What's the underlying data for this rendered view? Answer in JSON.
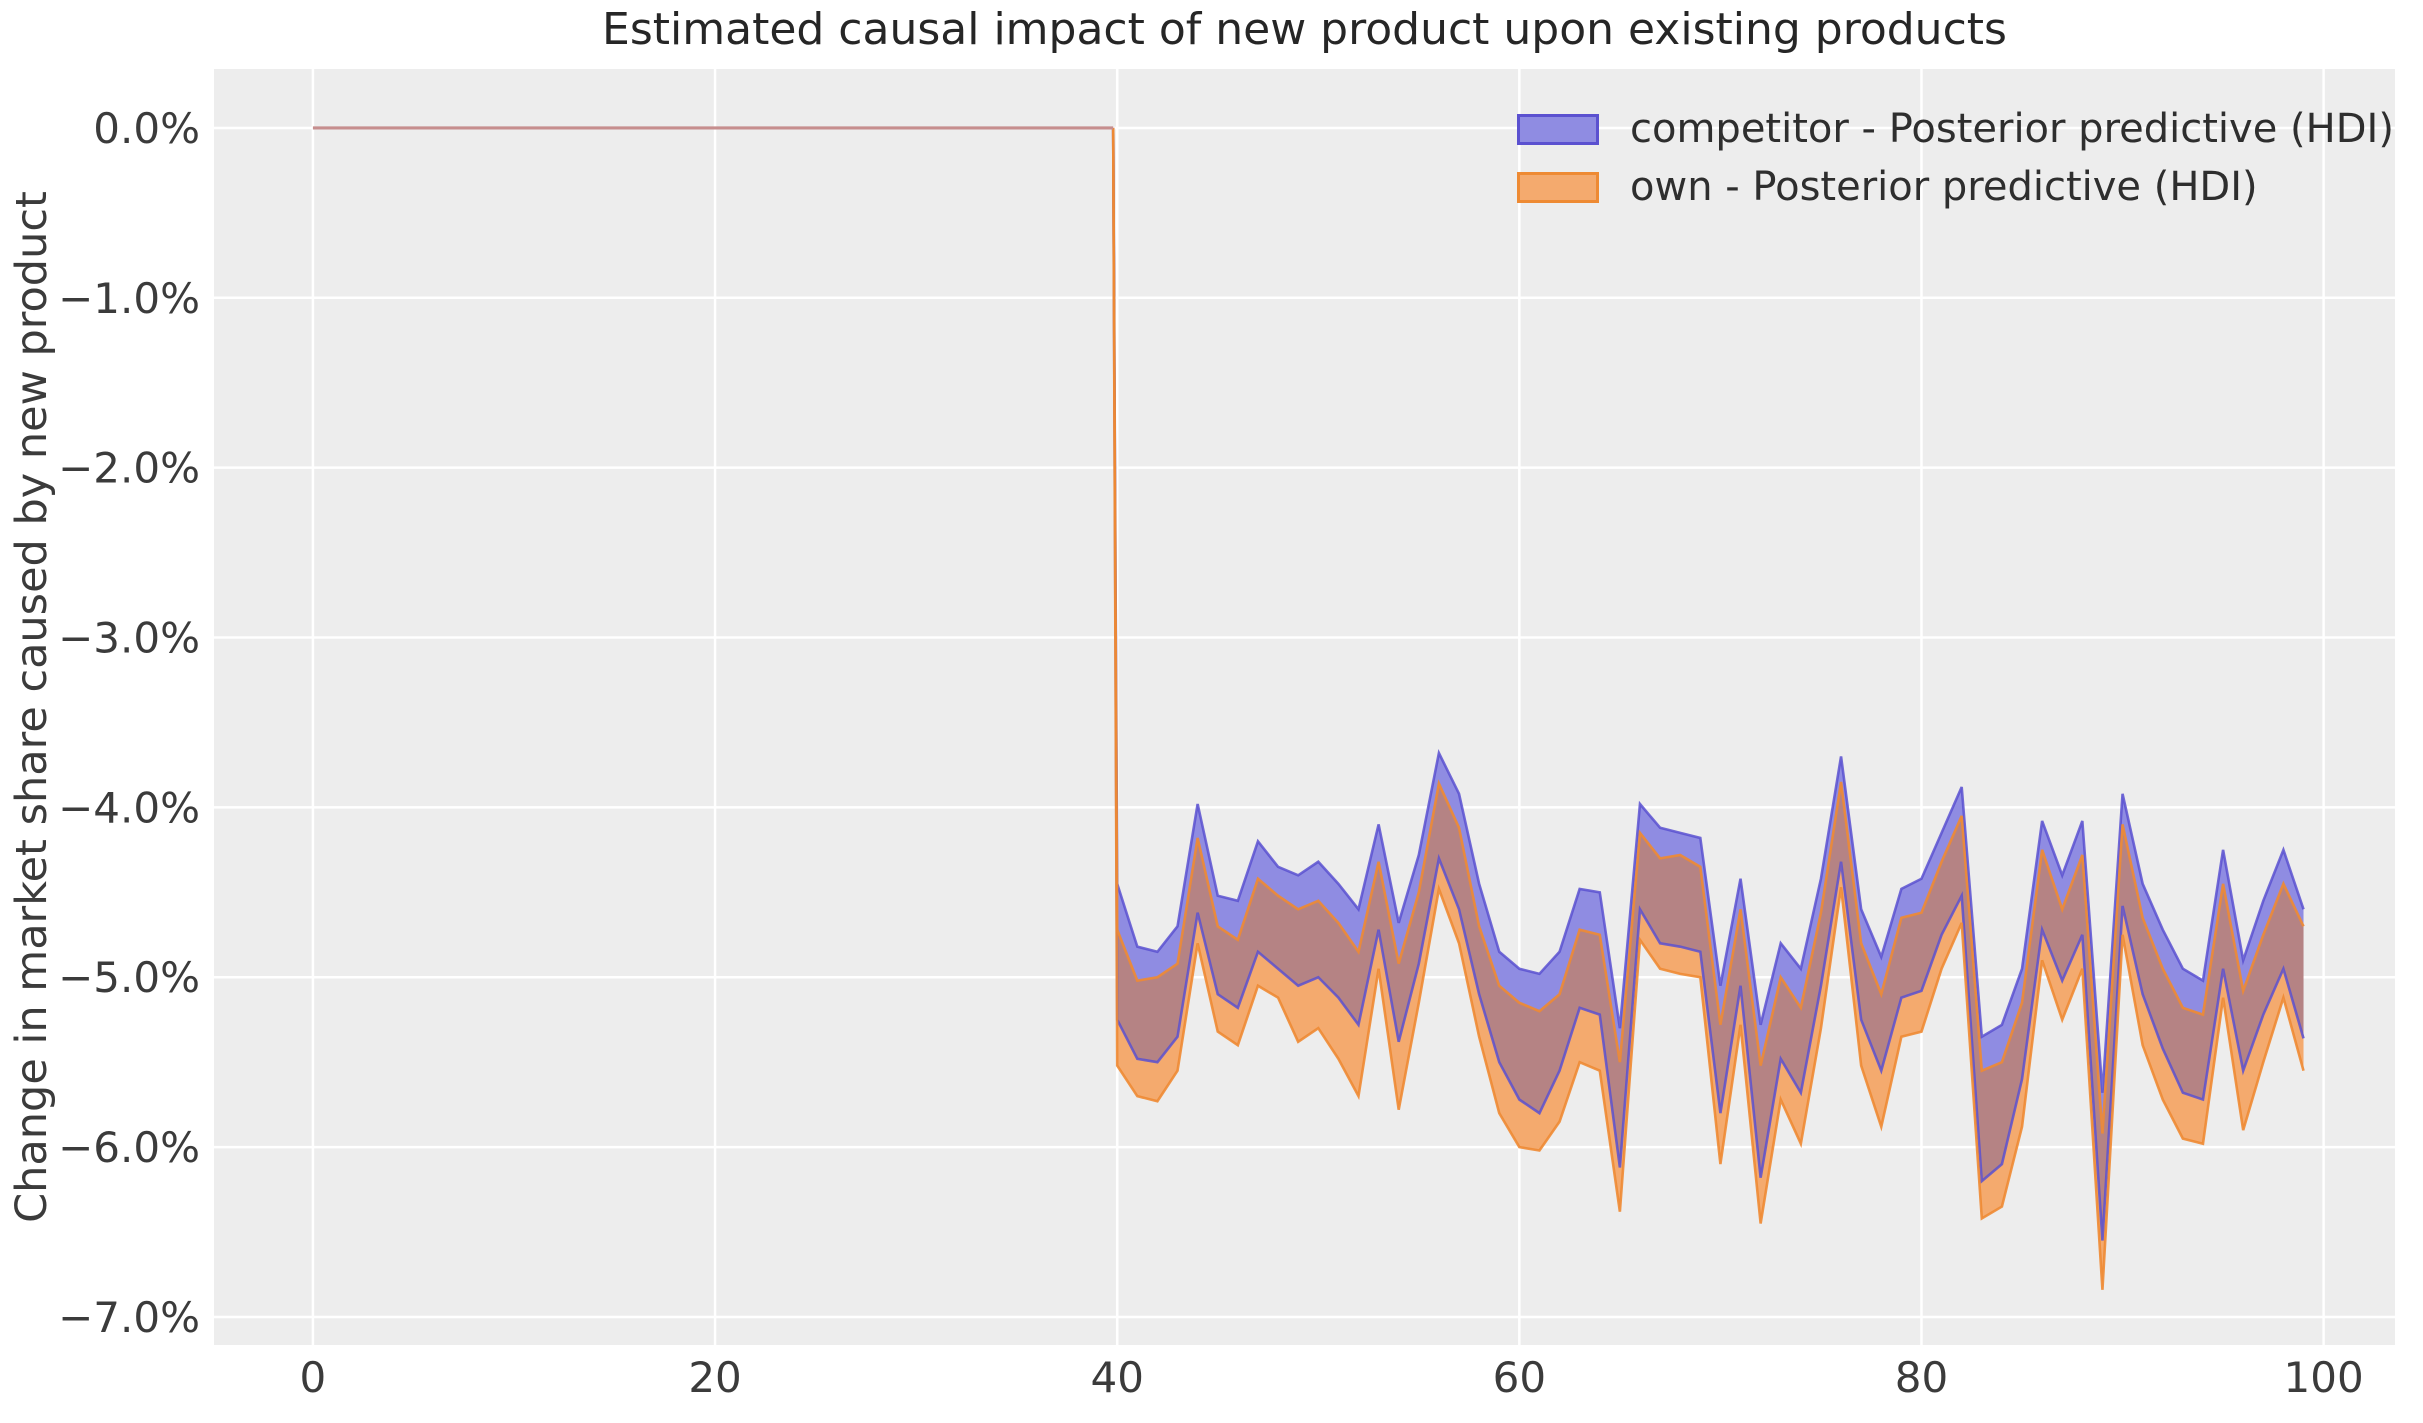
{
  "title": "Estimated causal impact of new product upon existing products",
  "ylabel": "Change in market share caused by new product",
  "legend": [
    {
      "label": "competitor - Posterior predictive (HDI)",
      "fill": "#8f8ce2",
      "edge": "#5b51d0"
    },
    {
      "label": "own - Posterior predictive (HDI)",
      "fill": "#f4aa6e",
      "edge": "#ee8a33"
    }
  ],
  "colors": {
    "figure_bg": "#ffffff",
    "axes_bg": "#ededed",
    "grid": "#ffffff",
    "competitor_fill": "#8f8ce2",
    "competitor_edge": "#5b51d0",
    "own_fill": "#f4aa6e",
    "own_edge": "#ee8a33",
    "overlap_fill": "#b58384",
    "pre_line": "#c68e8e",
    "tick_text": "#3b3b3b"
  },
  "chart_data": {
    "type": "area",
    "title": "Estimated causal impact of new product upon existing products",
    "xlabel": "",
    "ylabel": "Change in market share caused by new product",
    "grid": true,
    "legend_position": "upper right",
    "xlim": [
      -4.92,
      103.55
    ],
    "ylim_pct": [
      -7.165,
      0.347
    ],
    "xticks": [
      0,
      20,
      40,
      60,
      80,
      100
    ],
    "xtick_labels": [
      "0",
      "20",
      "40",
      "60",
      "80",
      "100"
    ],
    "yticks_pct": [
      0,
      -1,
      -2,
      -3,
      -4,
      -5,
      -6,
      -7
    ],
    "ytick_labels": [
      "0.0%",
      "−1.0%",
      "−2.0%",
      "−3.0%",
      "−4.0%",
      "−5.0%",
      "−6.0%",
      "−7.0%"
    ],
    "pre_period": {
      "x_start": 0,
      "x_end": 39.8,
      "value_pct": 0.0
    },
    "x": [
      40,
      41,
      42,
      43,
      44,
      45,
      46,
      47,
      48,
      49,
      50,
      51,
      52,
      53,
      54,
      55,
      56,
      57,
      58,
      59,
      60,
      61,
      62,
      63,
      64,
      65,
      66,
      67,
      68,
      69,
      70,
      71,
      72,
      73,
      74,
      75,
      76,
      77,
      78,
      79,
      80,
      81,
      82,
      83,
      84,
      85,
      86,
      87,
      88,
      89,
      90,
      91,
      92,
      93,
      94,
      95,
      96,
      97,
      98,
      99
    ],
    "series": [
      {
        "name": "competitor_hdi_upper_pct",
        "values": [
          -4.45,
          -4.82,
          -4.85,
          -4.7,
          -3.98,
          -4.52,
          -4.55,
          -4.2,
          -4.35,
          -4.4,
          -4.32,
          -4.45,
          -4.6,
          -4.1,
          -4.68,
          -4.28,
          -3.68,
          -3.92,
          -4.45,
          -4.85,
          -4.95,
          -4.98,
          -4.85,
          -4.48,
          -4.5,
          -5.3,
          -3.98,
          -4.12,
          -4.15,
          -4.18,
          -5.05,
          -4.42,
          -5.28,
          -4.8,
          -4.95,
          -4.42,
          -3.7,
          -4.6,
          -4.88,
          -4.48,
          -4.42,
          -4.15,
          -3.88,
          -5.35,
          -5.28,
          -4.95,
          -4.08,
          -4.4,
          -4.08,
          -5.68,
          -3.92,
          -4.45,
          -4.72,
          -4.95,
          -5.02,
          -4.25,
          -4.9,
          -4.55,
          -4.25,
          -4.6
        ]
      },
      {
        "name": "competitor_hdi_lower_pct",
        "values": [
          -5.25,
          -5.48,
          -5.5,
          -5.35,
          -4.62,
          -5.1,
          -5.18,
          -4.85,
          -4.95,
          -5.05,
          -5.0,
          -5.12,
          -5.28,
          -4.72,
          -5.38,
          -4.92,
          -4.3,
          -4.6,
          -5.1,
          -5.5,
          -5.72,
          -5.8,
          -5.55,
          -5.18,
          -5.22,
          -6.12,
          -4.6,
          -4.8,
          -4.82,
          -4.85,
          -5.8,
          -5.05,
          -6.18,
          -5.48,
          -5.68,
          -5.05,
          -4.32,
          -5.25,
          -5.55,
          -5.12,
          -5.08,
          -4.75,
          -4.52,
          -6.2,
          -6.1,
          -5.6,
          -4.72,
          -5.02,
          -4.75,
          -6.55,
          -4.58,
          -5.1,
          -5.42,
          -5.68,
          -5.72,
          -4.95,
          -5.55,
          -5.22,
          -4.95,
          -5.36
        ]
      },
      {
        "name": "own_hdi_upper_pct",
        "values": [
          -4.72,
          -5.02,
          -5.0,
          -4.92,
          -4.18,
          -4.7,
          -4.78,
          -4.42,
          -4.52,
          -4.6,
          -4.55,
          -4.68,
          -4.85,
          -4.32,
          -4.92,
          -4.5,
          -3.86,
          -4.12,
          -4.7,
          -5.05,
          -5.15,
          -5.2,
          -5.1,
          -4.72,
          -4.75,
          -5.5,
          -4.15,
          -4.3,
          -4.28,
          -4.35,
          -5.28,
          -4.6,
          -5.52,
          -5.0,
          -5.18,
          -4.62,
          -3.85,
          -4.8,
          -5.1,
          -4.65,
          -4.62,
          -4.32,
          -4.05,
          -5.55,
          -5.5,
          -5.15,
          -4.25,
          -4.6,
          -4.28,
          -5.92,
          -4.1,
          -4.65,
          -4.95,
          -5.18,
          -5.22,
          -4.45,
          -5.08,
          -4.75,
          -4.45,
          -4.7
        ]
      },
      {
        "name": "own_hdi_lower_pct",
        "values": [
          -5.52,
          -5.7,
          -5.73,
          -5.55,
          -4.8,
          -5.32,
          -5.4,
          -5.05,
          -5.12,
          -5.38,
          -5.3,
          -5.48,
          -5.7,
          -4.95,
          -5.78,
          -5.15,
          -4.48,
          -4.8,
          -5.35,
          -5.8,
          -6.0,
          -6.02,
          -5.85,
          -5.5,
          -5.55,
          -6.38,
          -4.78,
          -4.95,
          -4.98,
          -5.0,
          -6.1,
          -5.28,
          -6.45,
          -5.72,
          -5.98,
          -5.3,
          -4.47,
          -5.52,
          -5.88,
          -5.35,
          -5.32,
          -4.95,
          -4.68,
          -6.42,
          -6.35,
          -5.88,
          -4.9,
          -5.25,
          -4.95,
          -6.84,
          -4.75,
          -5.4,
          -5.72,
          -5.95,
          -5.98,
          -5.12,
          -5.9,
          -5.5,
          -5.12,
          -5.55
        ]
      }
    ]
  }
}
